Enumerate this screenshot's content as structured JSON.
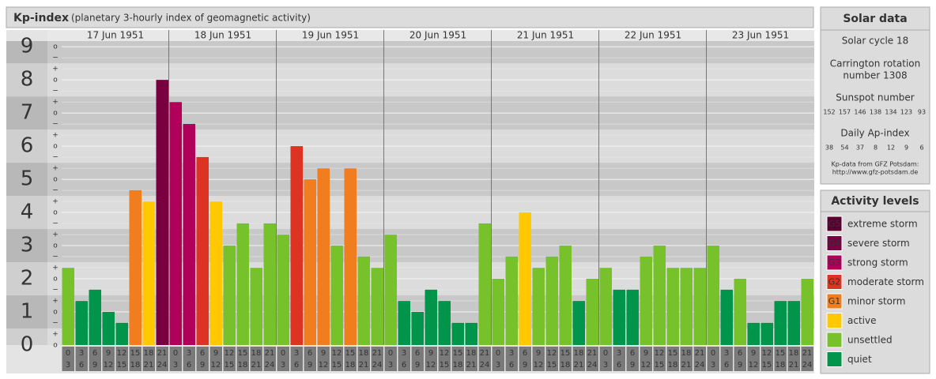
{
  "chart_data": {
    "type": "bar",
    "title": "Kp-index",
    "subtitle": "(planetary 3-hourly index of geomagnetic activity)",
    "days": [
      "17 Jun 1951",
      "18 Jun 1951",
      "19 Jun 1951",
      "20 Jun 1951",
      "21 Jun 1951",
      "22 Jun 1951",
      "23 Jun 1951"
    ],
    "hour_labels": [
      [
        "0",
        "3"
      ],
      [
        "3",
        "6"
      ],
      [
        "6",
        "9"
      ],
      [
        "9",
        "12"
      ],
      [
        "12",
        "15"
      ],
      [
        "15",
        "18"
      ],
      [
        "18",
        "21"
      ],
      [
        "21",
        "24"
      ]
    ],
    "values": [
      2.33,
      1.33,
      1.67,
      1,
      0.67,
      4.67,
      4.33,
      8,
      7.33,
      6.67,
      5.67,
      4.33,
      3,
      3.67,
      2.33,
      3.67,
      3.33,
      6,
      5,
      5.33,
      3,
      5.33,
      2.67,
      2.33,
      3.33,
      1.33,
      1,
      1.67,
      1.33,
      0.67,
      0.67,
      3.67,
      2,
      2.67,
      4,
      2.33,
      2.67,
      3,
      1.33,
      2,
      2.33,
      1.67,
      1.67,
      2.67,
      3,
      2.33,
      2.33,
      2.33,
      3,
      1.67,
      2,
      0.67,
      0.67,
      1.33,
      1.33,
      2
    ],
    "colors": [
      "#77c12a",
      "#00954a",
      "#00954a",
      "#00954a",
      "#00954a",
      "#f07d1e",
      "#ffc800",
      "#780040",
      "#b0005a",
      "#b0005a",
      "#dd3322",
      "#ffc800",
      "#77c12a",
      "#77c12a",
      "#77c12a",
      "#77c12a",
      "#77c12a",
      "#dd3322",
      "#f07d1e",
      "#f07d1e",
      "#77c12a",
      "#f07d1e",
      "#77c12a",
      "#77c12a",
      "#77c12a",
      "#00954a",
      "#00954a",
      "#00954a",
      "#00954a",
      "#00954a",
      "#00954a",
      "#77c12a",
      "#77c12a",
      "#77c12a",
      "#ffc800",
      "#77c12a",
      "#77c12a",
      "#77c12a",
      "#00954a",
      "#77c12a",
      "#77c12a",
      "#00954a",
      "#00954a",
      "#77c12a",
      "#77c12a",
      "#77c12a",
      "#77c12a",
      "#77c12a",
      "#77c12a",
      "#00954a",
      "#77c12a",
      "#00954a",
      "#00954a",
      "#00954a",
      "#00954a",
      "#77c12a"
    ],
    "ylim": [
      0,
      9.17
    ],
    "yticks": [
      0,
      1,
      2,
      3,
      4,
      5,
      6,
      7,
      8,
      9
    ],
    "minor_labels": {
      "minus": "−",
      "zero": "o",
      "plus": "+"
    },
    "solar_data": {
      "title": "Solar data",
      "cycle": "Solar cycle 18",
      "carrington": [
        "Carrington rotation",
        "number 1308"
      ],
      "sunspot_title": "Sunspot number",
      "sunspot": [
        152,
        157,
        146,
        138,
        134,
        123,
        93
      ],
      "ap_title": "Daily Ap-index",
      "ap": [
        38,
        54,
        37,
        8,
        12,
        9,
        6
      ],
      "source": [
        "Kp-data from GFZ Potsdam:",
        "http://www.gfz-potsdam.de"
      ]
    },
    "activity_levels": {
      "title": "Activity levels",
      "levels": [
        {
          "badge": "G5",
          "name": "extreme storm",
          "color": "#5a0030"
        },
        {
          "badge": "G4",
          "name": "severe storm",
          "color": "#780040"
        },
        {
          "badge": "G3",
          "name": "strong storm",
          "color": "#b0005a"
        },
        {
          "badge": "G2",
          "name": "moderate storm",
          "color": "#dd3322"
        },
        {
          "badge": "G1",
          "name": "minor storm",
          "color": "#f07d1e"
        },
        {
          "badge": null,
          "name": "active",
          "color": "#ffc800"
        },
        {
          "badge": null,
          "name": "unsettled",
          "color": "#77c12a"
        },
        {
          "badge": null,
          "name": "quiet",
          "color": "#00954a"
        }
      ]
    }
  }
}
